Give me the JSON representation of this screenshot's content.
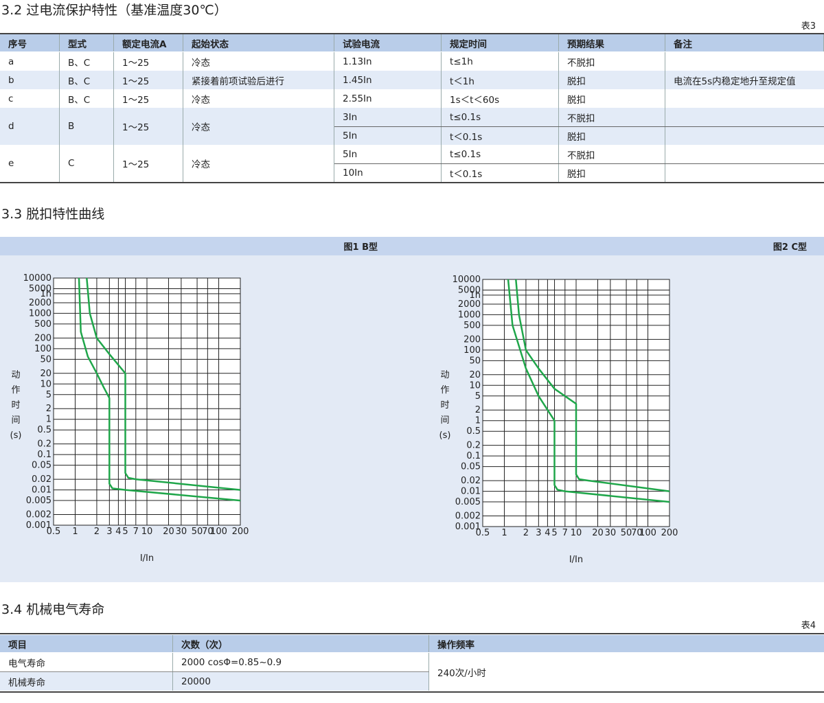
{
  "section_32": "3.2 过电流保护特性（基准温度30℃）",
  "table3": {
    "label": "表3",
    "headers": [
      "序号",
      "型式",
      "额定电流A",
      "起始状态",
      "试验电流",
      "规定时间",
      "预期结果",
      "备注"
    ],
    "rows": [
      {
        "no": "a",
        "type": "B、C",
        "rated": "1～25",
        "state": "冷态",
        "tests": [
          {
            "current": "1.13In",
            "time": "t≤1h",
            "result": "不脱扣"
          }
        ]
      },
      {
        "no": "b",
        "type": "B、C",
        "rated": "1～25",
        "state": "紧接着前项试验后进行",
        "tests": [
          {
            "current": "1.45In",
            "time": "t＜1h",
            "result": "脱扣"
          }
        ],
        "remark": "电流在5s内稳定地升至规定值"
      },
      {
        "no": "c",
        "type": "B、C",
        "rated": "1～25",
        "state": "冷态",
        "tests": [
          {
            "current": "2.55In",
            "time": "1s＜t＜60s",
            "result": "脱扣"
          }
        ]
      },
      {
        "no": "d",
        "type": "B",
        "rated": "1～25",
        "state": "冷态",
        "tests": [
          {
            "current": "3In",
            "time": "t≤0.1s",
            "result": "不脱扣"
          },
          {
            "current": "5In",
            "time": "t＜0.1s",
            "result": "脱扣"
          }
        ]
      },
      {
        "no": "e",
        "type": "C",
        "rated": "1～25",
        "state": "冷态",
        "tests": [
          {
            "current": "5In",
            "time": "t≤0.1s",
            "result": "不脱扣"
          },
          {
            "current": "10In",
            "time": "t＜0.1s",
            "result": "脱扣"
          }
        ]
      }
    ]
  },
  "section_33": "3.3 脱扣特性曲线",
  "chart_data": [
    {
      "type": "line",
      "title": "图1 B型",
      "ylabel_lines": [
        "动",
        "作",
        "时",
        "间",
        "(s)"
      ],
      "xlabel": "I/In",
      "xscale": "log",
      "yscale": "log",
      "grid": true,
      "xlim": [
        0.5,
        200
      ],
      "ylim": [
        0.001,
        10000
      ],
      "xticks": [
        0.5,
        1,
        2,
        3,
        4,
        5,
        7,
        10,
        20,
        30,
        50,
        70,
        100,
        200
      ],
      "yticks": [
        10000,
        5000,
        {
          "value": 3600,
          "label": "1h"
        },
        2000,
        1000,
        500,
        200,
        100,
        50,
        20,
        10,
        5,
        2,
        1,
        0.5,
        0.2,
        0.1,
        0.05,
        0.02,
        0.01,
        0.005,
        0.002,
        0.001
      ],
      "series": [
        {
          "color": "#1fa64a",
          "x": [
            1.13,
            1.2,
            1.5,
            2,
            2.5,
            3,
            3,
            3.3,
            5,
            200
          ],
          "values": [
            10000,
            300,
            60,
            20,
            8,
            4,
            0.015,
            0.011,
            0.01,
            0.005
          ]
        },
        {
          "color": "#1fa64a",
          "x": [
            1.45,
            1.6,
            2,
            3,
            5,
            5,
            5.5,
            7,
            200
          ],
          "values": [
            10000,
            1000,
            200,
            70,
            20,
            0.03,
            0.022,
            0.02,
            0.01
          ]
        }
      ]
    },
    {
      "type": "line",
      "title": "图2 C型",
      "ylabel_lines": [
        "动",
        "作",
        "时",
        "间",
        "(s)"
      ],
      "xlabel": "I/In",
      "xscale": "log",
      "yscale": "log",
      "grid": true,
      "xlim": [
        0.5,
        200
      ],
      "ylim": [
        0.001,
        10000
      ],
      "xticks": [
        0.5,
        1,
        2,
        3,
        4,
        5,
        7,
        10,
        20,
        30,
        50,
        70,
        100,
        200
      ],
      "yticks": [
        10000,
        5000,
        {
          "value": 3600,
          "label": "1h"
        },
        2000,
        1000,
        500,
        200,
        100,
        50,
        20,
        10,
        5,
        2,
        1,
        0.5,
        0.2,
        0.1,
        0.05,
        0.02,
        0.01,
        0.005,
        0.002,
        0.001
      ],
      "series": [
        {
          "color": "#1fa64a",
          "x": [
            1.13,
            1.3,
            2,
            3,
            5,
            5,
            5.5,
            7,
            200
          ],
          "values": [
            10000,
            500,
            30,
            5,
            1,
            0.015,
            0.011,
            0.01,
            0.005
          ]
        },
        {
          "color": "#1fa64a",
          "x": [
            1.45,
            1.6,
            2,
            3,
            5,
            10,
            10,
            11,
            15,
            200
          ],
          "values": [
            10000,
            1000,
            100,
            30,
            8,
            3,
            0.03,
            0.022,
            0.02,
            0.01
          ]
        }
      ]
    }
  ],
  "section_34": "3.4 机械电气寿命",
  "table4": {
    "label": "表4",
    "headers": [
      "项目",
      "次数（次）",
      "操作频率"
    ],
    "rows": [
      {
        "item": "电气寿命",
        "count": "2000 cosΦ=0.85~0.9"
      },
      {
        "item": "机械寿命",
        "count": "20000"
      }
    ],
    "frequency": "240次/小时"
  }
}
